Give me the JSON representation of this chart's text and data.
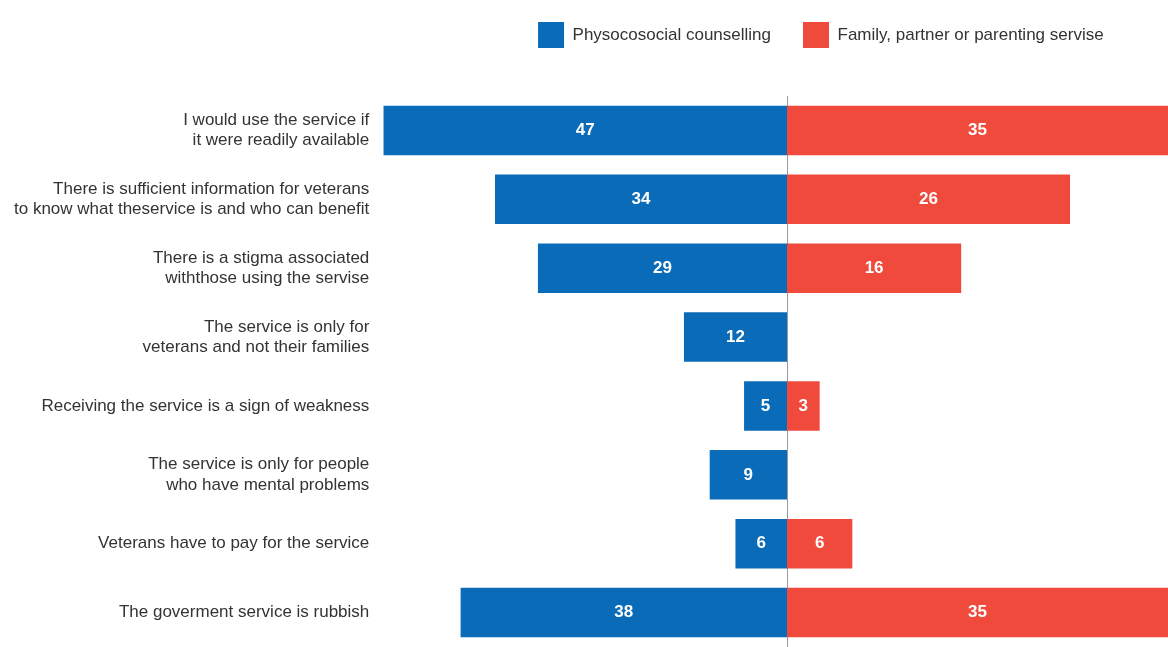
{
  "chart_data": [
    {
      "type": "bar",
      "orientation": "horizontal",
      "categories": [
        "I would use the service if it were readily available",
        "There is sufficient information for veterans to know what theservice is and who can benefit",
        "There is a stigma associated withthose using the servise",
        "The service is only for veterans and not their families",
        "Receiving the service is a sign of weakness",
        "The service is only for people who have mental problems",
        "Veterans have to pay for the service",
        "The goverment service is rubbish"
      ],
      "series": [
        {
          "name": "Physocosocial counselling",
          "color": "#0a6bb8",
          "values": [
            47,
            34,
            29,
            12,
            5,
            9,
            6,
            38
          ]
        }
      ],
      "xlim": [
        47,
        0
      ],
      "legend": "top right",
      "tick_labels": "y",
      "data_labels": true
    },
    {
      "type": "bar",
      "orientation": "horizontal",
      "categories": [
        null,
        null,
        null,
        null,
        null,
        null,
        null,
        null
      ],
      "series": [
        {
          "name": "Family, partner or parenting servise",
          "color": "#ef4a3c",
          "values": [
            35,
            26,
            16,
            null,
            3,
            null,
            6,
            35
          ]
        }
      ],
      "xlim": [
        0,
        35
      ],
      "legend": "top left",
      "tick_labels": false,
      "data_labels": true
    }
  ]
}
